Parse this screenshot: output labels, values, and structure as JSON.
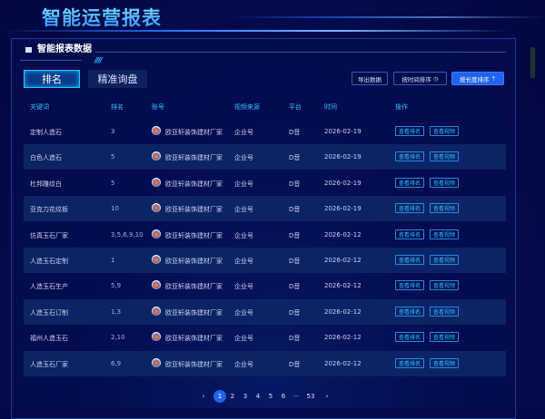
{
  "header": {
    "title": "智能运营报表"
  },
  "panel": {
    "title": "智能报表数据"
  },
  "tabs": [
    {
      "label": "排名",
      "active": true
    },
    {
      "label": "精准询盘",
      "active": false
    }
  ],
  "toolbar": {
    "export": "导出数据",
    "sort_time": "按时间排序",
    "sort_length": "按长度排序"
  },
  "columns": [
    "关键词",
    "排名",
    "账号",
    "视频来源",
    "平台",
    "时间",
    "操作"
  ],
  "rows": [
    {
      "keyword": "定制人造石",
      "rank": "3",
      "account": "欧亚轩装饰建材厂家",
      "source": "企业号",
      "platform": "D音",
      "time": "2026-02-19"
    },
    {
      "keyword": "白色人造石",
      "rank": "5",
      "account": "欧亚轩装饰建材厂家",
      "source": "企业号",
      "platform": "D音",
      "time": "2026-02-19"
    },
    {
      "keyword": "杜邦雕纹白",
      "rank": "5",
      "account": "欧亚轩装饰建材厂家",
      "source": "企业号",
      "platform": "D音",
      "time": "2026-02-19"
    },
    {
      "keyword": "亚克力花纹板",
      "rank": "10",
      "account": "欧亚轩装饰建材厂家",
      "source": "企业号",
      "platform": "D音",
      "time": "2026-02-19"
    },
    {
      "keyword": "仿真玉石厂家",
      "rank": "3,5,6,9,10",
      "account": "欧亚轩装饰建材厂家",
      "source": "企业号",
      "platform": "D音",
      "time": "2026-02-12"
    },
    {
      "keyword": "人造玉石定制",
      "rank": "1",
      "account": "欧亚轩装饰建材厂家",
      "source": "企业号",
      "platform": "D音",
      "time": "2026-02-12"
    },
    {
      "keyword": "人造玉石生产",
      "rank": "5,9",
      "account": "欧亚轩装饰建材厂家",
      "source": "企业号",
      "platform": "D音",
      "time": "2026-02-12"
    },
    {
      "keyword": "人造玉石订制",
      "rank": "1,3",
      "account": "欧亚轩装饰建材厂家",
      "source": "企业号",
      "platform": "D音",
      "time": "2026-02-12"
    },
    {
      "keyword": "福州人造玉石",
      "rank": "2,10",
      "account": "欧亚轩装饰建材厂家",
      "source": "企业号",
      "platform": "D音",
      "time": "2026-02-12"
    },
    {
      "keyword": "人造玉石厂家",
      "rank": "6,9",
      "account": "欧亚轩装饰建材厂家",
      "source": "企业号",
      "platform": "D音",
      "time": "2026-02-12"
    }
  ],
  "actions": {
    "view_rank": "查看排名",
    "view_video": "查看视频"
  },
  "pagination": {
    "prev": "‹",
    "pages": [
      "1",
      "2",
      "3",
      "4",
      "5",
      "6",
      "···",
      "53"
    ],
    "current": "1",
    "next": "›"
  },
  "colors": {
    "accent": "#2fc3ff",
    "primary": "#1f63f0",
    "background": "#03094a"
  }
}
